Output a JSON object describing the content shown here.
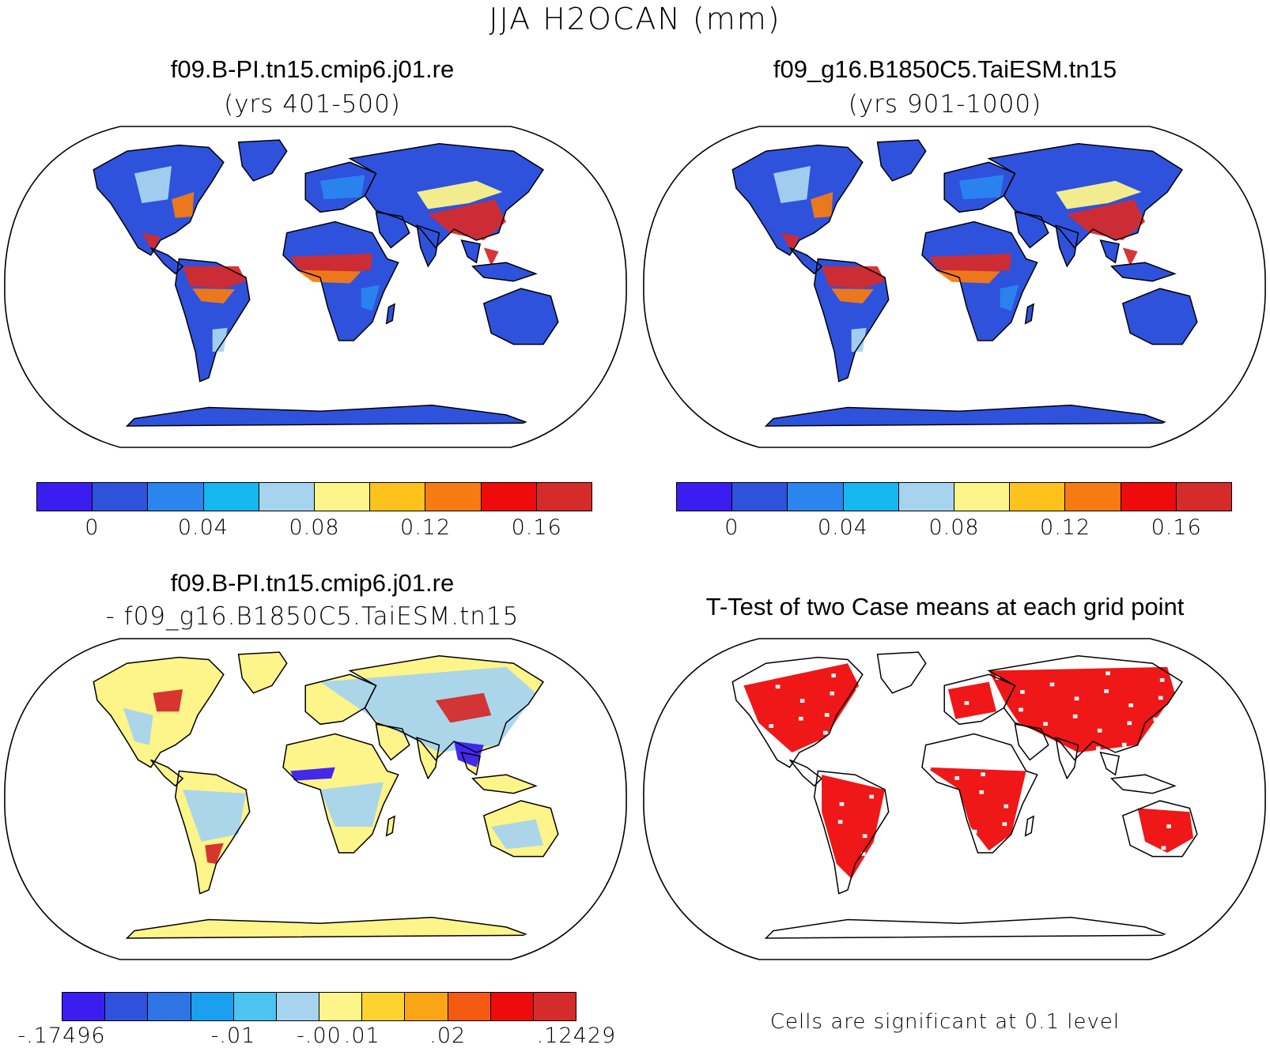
{
  "figure": {
    "title": "JJA H2OCAN (mm)"
  },
  "panels": {
    "case1": {
      "title": "f09.B-PI.tn15.cmip6.j01.re",
      "subtitle": "(yrs 401-500)"
    },
    "case2": {
      "title": "f09_g16.B1850C5.TaiESM.tn15",
      "subtitle": "(yrs 901-1000)"
    },
    "diff": {
      "title": "f09.B-PI.tn15.cmip6.j01.re",
      "subtitle": "- f09_g16.B1850C5.TaiESM.tn15"
    },
    "ttest": {
      "title": "T-Test of two Case means at each grid point",
      "note": "Cells are significant at 0.1 level"
    }
  },
  "colorbars": {
    "abs": {
      "colors": [
        "#3a1ef0",
        "#2f52dc",
        "#2a85ee",
        "#16b7ee",
        "#a6d4ef",
        "#fdf48a",
        "#fdc21c",
        "#f77a12",
        "#ee0b0b",
        "#d52b2b"
      ],
      "labels": [
        "0",
        "0.04",
        "0.08",
        "0.12",
        "0.16"
      ]
    },
    "diff": {
      "colors": [
        "#3a1ef0",
        "#2f52dc",
        "#2f74e4",
        "#1aa0ee",
        "#4cc4ef",
        "#a6d4ef",
        "#fdf48a",
        "#fdd42e",
        "#f9a516",
        "#f55a12",
        "#ee0b0b",
        "#d52b2b"
      ],
      "labels": [
        "-.17496",
        "-.01",
        "-.00",
        ".01",
        ".02",
        ".12429"
      ]
    }
  },
  "map_colors": {
    "ocean": "#ffffff",
    "abs_land": "#2f52dc",
    "abs_mid": "#2a85ee",
    "abs_light": "#a6d4ef",
    "abs_yellow": "#fdf48a",
    "abs_orange": "#f77a12",
    "abs_red": "#d52b2b",
    "diff_land": "#fdf48a",
    "diff_blue": "#a6d4ef",
    "diff_deep": "#3a1ef0",
    "diff_red": "#d52b2b",
    "sig": "#ee0b0b"
  }
}
